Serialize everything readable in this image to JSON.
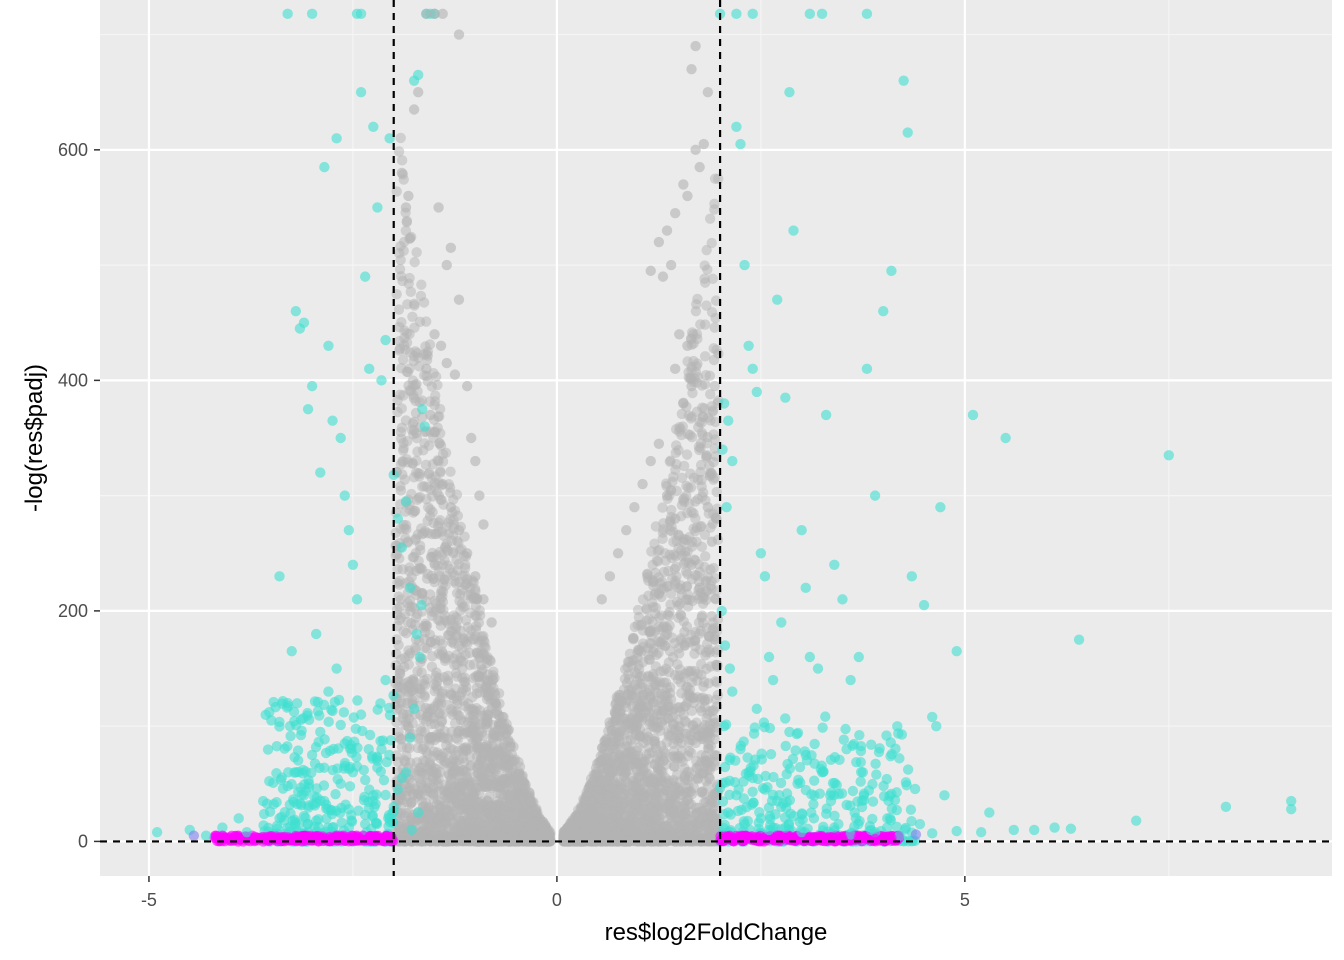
{
  "chart_data": {
    "type": "scatter",
    "title": "",
    "xlabel": "res$log2FoldChange",
    "ylabel": "-log(res$padj)",
    "xlim": [
      -5.6,
      9.5
    ],
    "ylim": [
      -30,
      730
    ],
    "x_ticks": [
      -5,
      0,
      5
    ],
    "x_tick_labels": [
      "-5",
      "0",
      "5"
    ],
    "y_ticks": [
      0,
      200,
      400,
      600
    ],
    "y_tick_labels": [
      "0",
      "200",
      "400",
      "600"
    ],
    "grid": true,
    "legend": "none",
    "thresholds": {
      "vertical_lines": [
        -2,
        2
      ],
      "horizontal_lines": [
        0
      ],
      "line_style": "dashed"
    },
    "colors": {
      "panel_background": "#ebebeb",
      "grid_major": "#ffffff",
      "grid_minor": "#f5f5f5",
      "significant": "#40e0d0",
      "not_significant": "#b3b3b3",
      "low_significance": "#ff00ff",
      "overlap": "#8080ee",
      "threshold_line": "#000000"
    },
    "series": [
      {
        "color_key": "significant",
        "points": [
          [
            -4.9,
            8
          ],
          [
            -4.5,
            10
          ],
          [
            -4.3,
            5
          ],
          [
            -4.1,
            12
          ],
          [
            -3.9,
            20
          ],
          [
            -3.8,
            8
          ],
          [
            -3.6,
            35
          ],
          [
            -3.5,
            105
          ],
          [
            -3.4,
            230
          ],
          [
            -3.3,
            120
          ],
          [
            -3.25,
            165
          ],
          [
            -3.2,
            460
          ],
          [
            -3.15,
            445
          ],
          [
            -3.1,
            450
          ],
          [
            -3.0,
            395
          ],
          [
            -3.05,
            375
          ],
          [
            -2.95,
            180
          ],
          [
            -2.9,
            320
          ],
          [
            -2.85,
            585
          ],
          [
            -2.8,
            430
          ],
          [
            -2.75,
            365
          ],
          [
            -2.7,
            610
          ],
          [
            -2.65,
            350
          ],
          [
            -2.6,
            300
          ],
          [
            -2.55,
            270
          ],
          [
            -2.5,
            240
          ],
          [
            -2.45,
            210
          ],
          [
            -2.4,
            650
          ],
          [
            -2.35,
            490
          ],
          [
            -2.3,
            410
          ],
          [
            -2.25,
            620
          ],
          [
            -2.2,
            550
          ],
          [
            -2.15,
            400
          ],
          [
            -2.1,
            435
          ],
          [
            -2.05,
            610
          ],
          [
            -2.0,
            318
          ],
          [
            -1.95,
            280
          ],
          [
            -1.9,
            255
          ],
          [
            -1.85,
            295
          ],
          [
            -1.8,
            220
          ],
          [
            -1.75,
            660
          ],
          [
            -1.7,
            665
          ],
          [
            -1.65,
            375
          ],
          [
            -1.62,
            360
          ],
          [
            -1.6,
            730
          ],
          [
            -1.55,
            730
          ],
          [
            -1.5,
            730
          ],
          [
            -3.3,
            730
          ],
          [
            -3.0,
            730
          ],
          [
            -2.45,
            730
          ],
          [
            -2.4,
            730
          ],
          [
            -3.2,
            60
          ],
          [
            -3.1,
            40
          ],
          [
            -3.0,
            75
          ],
          [
            -2.9,
            95
          ],
          [
            -2.8,
            130
          ],
          [
            -2.7,
            150
          ],
          [
            -2.6,
            85
          ],
          [
            -2.5,
            60
          ],
          [
            -2.4,
            110
          ],
          [
            -2.3,
            45
          ],
          [
            -2.2,
            70
          ],
          [
            -2.1,
            140
          ],
          [
            -2.0,
            30
          ],
          [
            -1.9,
            55
          ],
          [
            -1.8,
            90
          ],
          [
            -1.75,
            115
          ],
          [
            -1.7,
            25
          ],
          [
            -3.4,
            20
          ],
          [
            -3.3,
            48
          ],
          [
            -3.1,
            22
          ],
          [
            -2.95,
            18
          ],
          [
            -2.85,
            35
          ],
          [
            -2.75,
            12
          ],
          [
            -2.65,
            50
          ],
          [
            -2.55,
            28
          ],
          [
            -2.45,
            65
          ],
          [
            -2.35,
            15
          ],
          [
            -2.25,
            40
          ],
          [
            -2.15,
            80
          ],
          [
            -2.05,
            20
          ],
          [
            -1.95,
            45
          ],
          [
            -1.85,
            60
          ],
          [
            -1.78,
            10
          ],
          [
            -1.72,
            180
          ],
          [
            -1.68,
            160
          ],
          [
            -1.66,
            205
          ],
          [
            2.05,
            380
          ],
          [
            2.1,
            365
          ],
          [
            2.15,
            330
          ],
          [
            2.2,
            620
          ],
          [
            2.25,
            605
          ],
          [
            2.3,
            500
          ],
          [
            2.35,
            430
          ],
          [
            2.4,
            410
          ],
          [
            2.45,
            390
          ],
          [
            2.5,
            250
          ],
          [
            2.55,
            230
          ],
          [
            2.6,
            160
          ],
          [
            2.7,
            470
          ],
          [
            2.75,
            190
          ],
          [
            2.8,
            385
          ],
          [
            2.85,
            650
          ],
          [
            2.9,
            530
          ],
          [
            3.0,
            270
          ],
          [
            3.05,
            220
          ],
          [
            3.1,
            160
          ],
          [
            3.2,
            150
          ],
          [
            3.3,
            370
          ],
          [
            3.4,
            240
          ],
          [
            3.5,
            210
          ],
          [
            3.6,
            140
          ],
          [
            3.7,
            160
          ],
          [
            3.8,
            410
          ],
          [
            3.9,
            300
          ],
          [
            4.0,
            460
          ],
          [
            4.1,
            495
          ],
          [
            4.25,
            660
          ],
          [
            4.3,
            615
          ],
          [
            4.35,
            230
          ],
          [
            4.5,
            205
          ],
          [
            4.6,
            108
          ],
          [
            4.65,
            100
          ],
          [
            4.7,
            290
          ],
          [
            4.9,
            165
          ],
          [
            5.1,
            370
          ],
          [
            5.5,
            350
          ],
          [
            6.4,
            175
          ],
          [
            7.5,
            335
          ],
          [
            8.2,
            30
          ],
          [
            9.0,
            35
          ],
          [
            9.0,
            28
          ],
          [
            7.1,
            18
          ],
          [
            5.85,
            10
          ],
          [
            6.1,
            12
          ],
          [
            5.3,
            25
          ],
          [
            5.2,
            8
          ],
          [
            4.75,
            40
          ],
          [
            4.45,
            15
          ],
          [
            2.0,
            730
          ],
          [
            2.2,
            730
          ],
          [
            2.4,
            730
          ],
          [
            3.1,
            730
          ],
          [
            3.25,
            730
          ],
          [
            3.8,
            730
          ],
          [
            2.05,
            100
          ],
          [
            2.15,
            130
          ],
          [
            2.25,
            80
          ],
          [
            2.35,
            60
          ],
          [
            2.45,
            115
          ],
          [
            2.55,
            45
          ],
          [
            2.65,
            140
          ],
          [
            2.75,
            30
          ],
          [
            2.85,
            95
          ],
          [
            2.95,
            50
          ],
          [
            3.05,
            75
          ],
          [
            3.15,
            20
          ],
          [
            3.25,
            60
          ],
          [
            3.35,
            40
          ],
          [
            3.45,
            15
          ],
          [
            3.55,
            80
          ],
          [
            3.65,
            25
          ],
          [
            3.75,
            60
          ],
          [
            3.85,
            10
          ],
          [
            4.05,
            20
          ],
          [
            2.1,
            25
          ],
          [
            2.2,
            40
          ],
          [
            2.3,
            15
          ],
          [
            2.4,
            55
          ],
          [
            2.5,
            20
          ],
          [
            2.6,
            10
          ],
          [
            2.7,
            35
          ],
          [
            2.8,
            12
          ],
          [
            2.9,
            22
          ],
          [
            3.0,
            8
          ],
          [
            3.4,
            12
          ],
          [
            3.6,
            6
          ],
          [
            3.9,
            8
          ],
          [
            4.2,
            5
          ],
          [
            4.6,
            7
          ],
          [
            4.9,
            9
          ],
          [
            5.6,
            10
          ],
          [
            6.3,
            11
          ],
          [
            2.02,
            200
          ],
          [
            2.06,
            170
          ],
          [
            2.12,
            150
          ],
          [
            2.08,
            290
          ],
          [
            2.03,
            340
          ]
        ]
      },
      {
        "color_key": "not_significant",
        "points": [
          [
            -1.9,
            580
          ],
          [
            -1.85,
            550
          ],
          [
            -1.82,
            560
          ],
          [
            -1.75,
            635
          ],
          [
            -1.7,
            650
          ],
          [
            -1.6,
            730
          ],
          [
            -1.5,
            730
          ],
          [
            -1.4,
            730
          ],
          [
            -1.2,
            700
          ],
          [
            -1.45,
            550
          ],
          [
            -1.35,
            500
          ],
          [
            -1.3,
            515
          ],
          [
            -1.2,
            470
          ],
          [
            -1.5,
            440
          ],
          [
            -1.42,
            430
          ],
          [
            -1.35,
            415
          ],
          [
            -1.25,
            405
          ],
          [
            -1.1,
            395
          ],
          [
            -1.05,
            350
          ],
          [
            -1.0,
            330
          ],
          [
            -0.95,
            300
          ],
          [
            -0.9,
            275
          ],
          [
            -1.6,
            410
          ],
          [
            -1.55,
            370
          ],
          [
            -1.5,
            355
          ],
          [
            -1.45,
            330
          ],
          [
            -1.4,
            310
          ],
          [
            -1.3,
            290
          ],
          [
            -1.2,
            270
          ],
          [
            -1.1,
            250
          ],
          [
            -1.0,
            230
          ],
          [
            -0.9,
            210
          ],
          [
            -0.8,
            190
          ],
          [
            1.7,
            690
          ],
          [
            1.65,
            670
          ],
          [
            1.85,
            650
          ],
          [
            1.8,
            605
          ],
          [
            1.7,
            600
          ],
          [
            1.75,
            585
          ],
          [
            1.55,
            570
          ],
          [
            1.6,
            560
          ],
          [
            1.45,
            545
          ],
          [
            1.35,
            530
          ],
          [
            1.25,
            520
          ],
          [
            1.15,
            495
          ],
          [
            1.4,
            500
          ],
          [
            1.3,
            490
          ],
          [
            1.5,
            440
          ],
          [
            1.6,
            430
          ],
          [
            1.45,
            410
          ],
          [
            1.65,
            395
          ],
          [
            1.55,
            380
          ],
          [
            1.25,
            345
          ],
          [
            1.15,
            330
          ],
          [
            1.05,
            310
          ],
          [
            0.95,
            290
          ],
          [
            0.85,
            270
          ],
          [
            0.75,
            250
          ],
          [
            0.65,
            230
          ],
          [
            0.55,
            210
          ],
          [
            1.35,
            300
          ],
          [
            1.45,
            280
          ],
          [
            1.55,
            260
          ],
          [
            1.65,
            240
          ],
          [
            1.75,
            220
          ],
          [
            1.85,
            290
          ],
          [
            1.9,
            260
          ]
        ]
      },
      {
        "color_key": "low_significance",
        "points": [
          [
            -4.1,
            5
          ],
          [
            -3.9,
            3
          ],
          [
            -3.7,
            4
          ],
          [
            -3.5,
            3
          ],
          [
            -3.3,
            2
          ],
          [
            -3.1,
            4
          ],
          [
            -2.9,
            3
          ],
          [
            -2.7,
            5
          ],
          [
            -2.5,
            2
          ],
          [
            -2.3,
            3
          ],
          [
            -2.1,
            4
          ],
          [
            2.1,
            4
          ],
          [
            2.3,
            3
          ],
          [
            2.5,
            2
          ],
          [
            2.7,
            5
          ],
          [
            2.9,
            3
          ],
          [
            3.1,
            4
          ],
          [
            3.3,
            2
          ],
          [
            3.5,
            3
          ],
          [
            3.7,
            4
          ],
          [
            3.9,
            2
          ],
          [
            4.1,
            3
          ]
        ]
      },
      {
        "color_key": "overlap",
        "points": [
          [
            -4.45,
            5
          ],
          [
            4.4,
            6
          ]
        ]
      }
    ],
    "dense_regions": [
      {
        "color_key": "not_significant",
        "x_range": [
          -1.98,
          -0.08
        ],
        "y_peak": 650,
        "description": "dense gray cloud left of zero"
      },
      {
        "color_key": "not_significant",
        "x_range": [
          0.08,
          1.98
        ],
        "y_peak": 600,
        "description": "dense gray cloud right of zero"
      },
      {
        "color_key": "significant",
        "x_range": [
          -3.6,
          -2.0
        ],
        "y_peak": 130,
        "description": "dense turquoise cluster left of threshold"
      },
      {
        "color_key": "significant",
        "x_range": [
          2.0,
          4.4
        ],
        "y_peak": 110,
        "description": "dense turquoise cluster right of threshold"
      },
      {
        "color_key": "low_significance",
        "x_range": [
          -4.2,
          -2.0
        ],
        "y_peak": 5,
        "description": "magenta band near zero, left"
      },
      {
        "color_key": "low_significance",
        "x_range": [
          2.0,
          4.2
        ],
        "y_peak": 5,
        "description": "magenta band near zero, right"
      }
    ]
  }
}
